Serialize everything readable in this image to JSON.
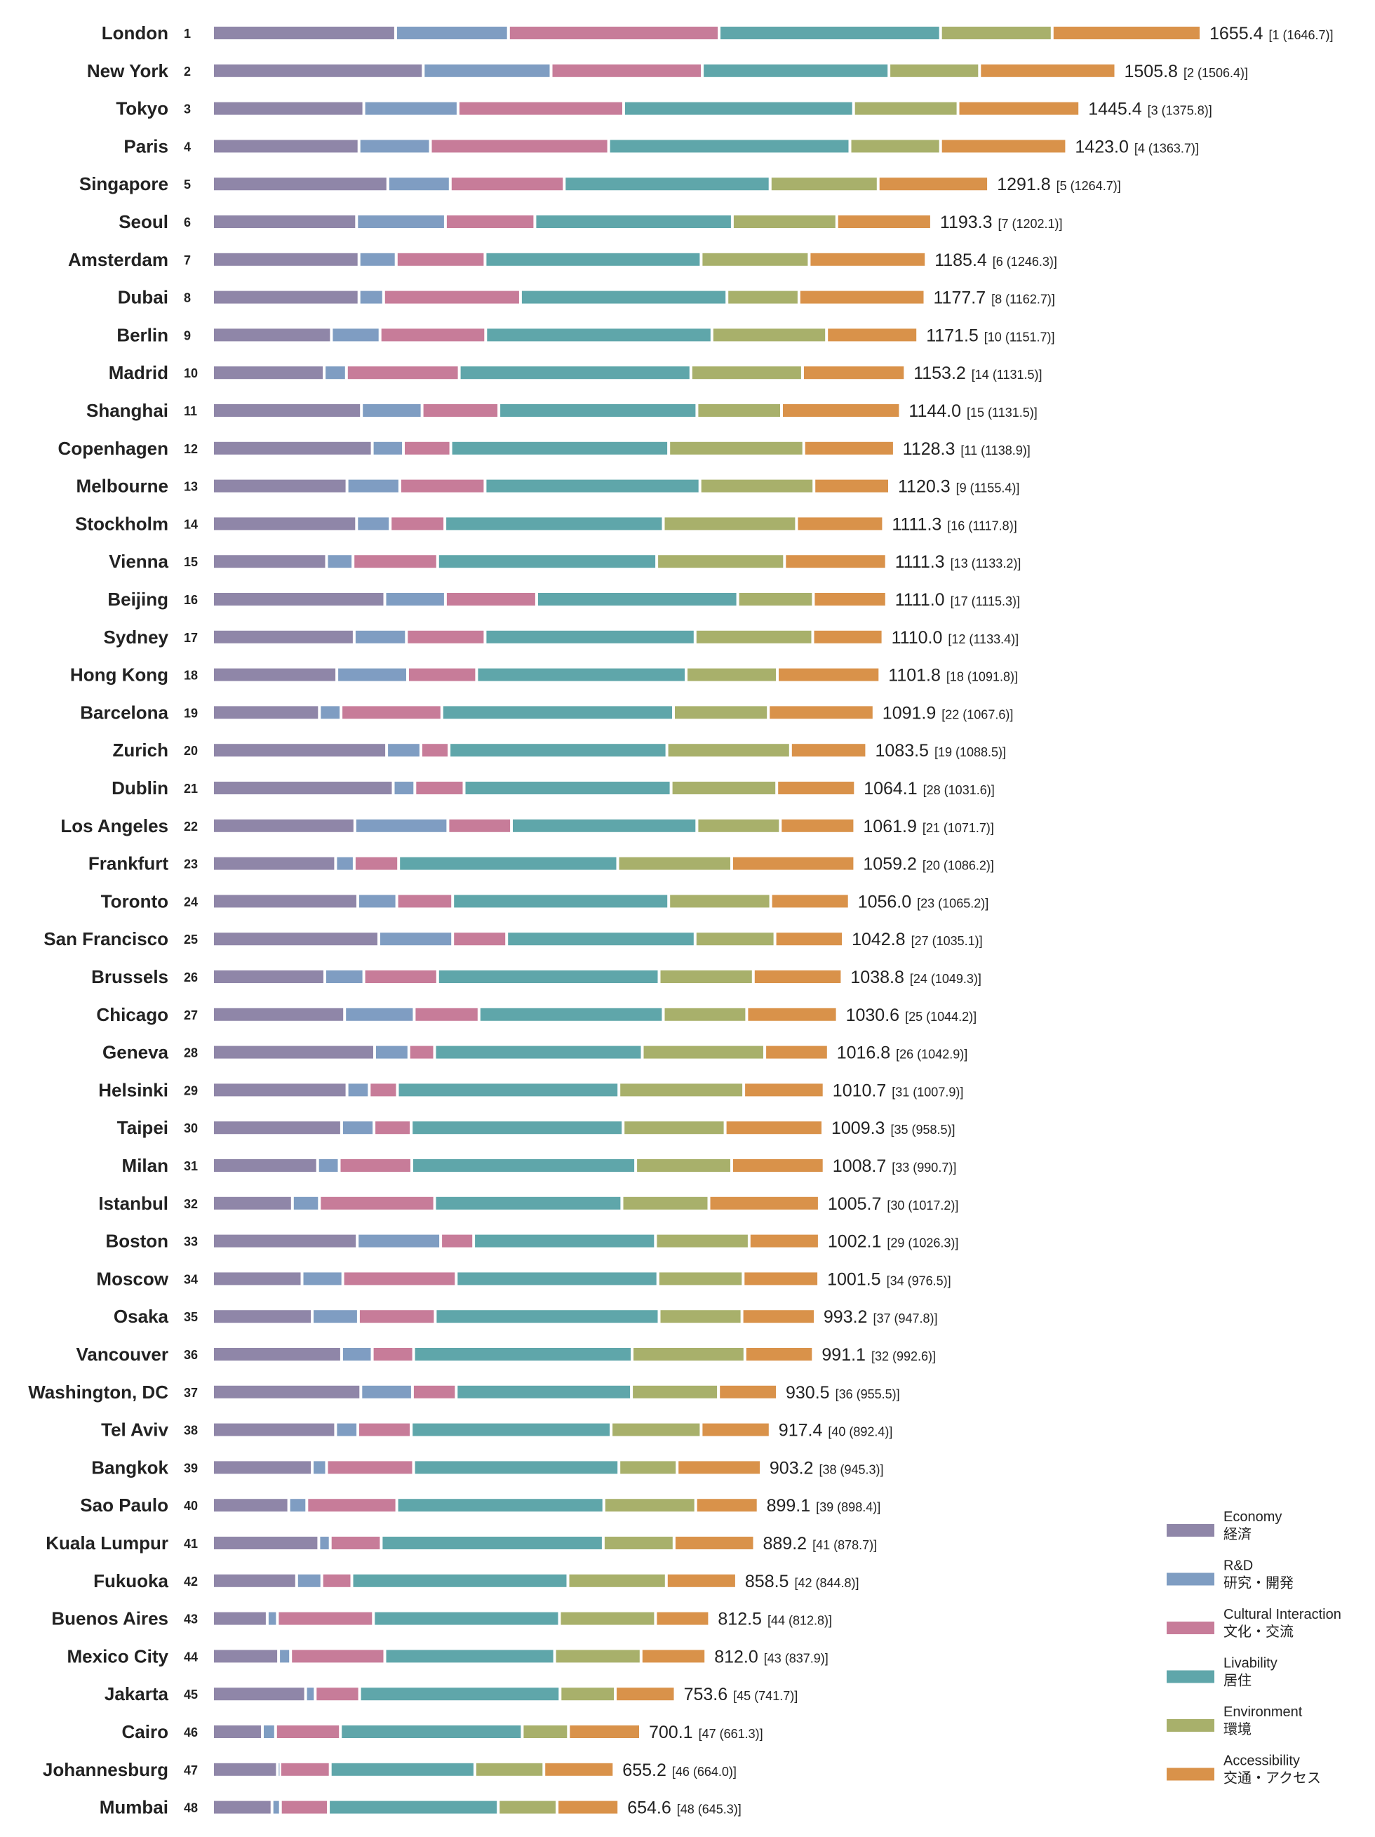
{
  "chart_data": {
    "type": "bar",
    "orientation": "horizontal",
    "stacked": true,
    "legend_position": "bottom-right",
    "grid": false,
    "legend": [
      {
        "name": "Economy",
        "name_jp": "経済",
        "color": "#8f86a8"
      },
      {
        "name": "R&D",
        "name_jp": "研究・開発",
        "color": "#7f9dc2"
      },
      {
        "name": "Cultural Interaction",
        "name_jp": "文化・交流",
        "color": "#c77c99"
      },
      {
        "name": "Livability",
        "name_jp": "居住",
        "color": "#5fa6aa"
      },
      {
        "name": "Environment",
        "name_jp": "環境",
        "color": "#a8b06b"
      },
      {
        "name": "Accessibility",
        "name_jp": "交通・アクセス",
        "color": "#d9924a"
      }
    ],
    "rows": [
      {
        "city": "London",
        "rank": "1",
        "total": "1655.4",
        "prev": "[1 (1646.7)]",
        "values": [
          305,
          188,
          351,
          369,
          186,
          248
        ]
      },
      {
        "city": "New York",
        "rank": "2",
        "total": "1505.8",
        "prev": "[2 (1506.4)]",
        "values": [
          351,
          213,
          252,
          311,
          151,
          227
        ]
      },
      {
        "city": "Tokyo",
        "rank": "3",
        "total": "1445.4",
        "prev": "[3 (1375.8)]",
        "values": [
          252,
          157,
          276,
          383,
          174,
          203
        ]
      },
      {
        "city": "Paris",
        "rank": "4",
        "total": "1423.0",
        "prev": "[4 (1363.7)]",
        "values": [
          244,
          119,
          297,
          402,
          151,
          210
        ]
      },
      {
        "city": "Singapore",
        "rank": "5",
        "total": "1291.8",
        "prev": "[5 (1264.7)]",
        "values": [
          292,
          104,
          190,
          343,
          180,
          184
        ]
      },
      {
        "city": "Seoul",
        "rank": "6",
        "total": "1193.3",
        "prev": "[7 (1202.1)]",
        "values": [
          240,
          148,
          149,
          329,
          174,
          158
        ]
      },
      {
        "city": "Amsterdam",
        "rank": "7",
        "total": "1185.4",
        "prev": "[6 (1246.3)]",
        "values": [
          244,
          62,
          148,
          360,
          180,
          195
        ]
      },
      {
        "city": "Dubai",
        "rank": "8",
        "total": "1177.7",
        "prev": "[8 (1162.7)]",
        "values": [
          244,
          41,
          228,
          344,
          120,
          210
        ]
      },
      {
        "city": "Berlin",
        "rank": "9",
        "total": "1171.5",
        "prev": "[10 (1151.7)]",
        "values": [
          198,
          81,
          176,
          377,
          191,
          152
        ]
      },
      {
        "city": "Madrid",
        "rank": "10",
        "total": "1153.2",
        "prev": "[14 (1131.5)]",
        "values": [
          186,
          37,
          188,
          386,
          186,
          171
        ]
      },
      {
        "city": "Shanghai",
        "rank": "11",
        "total": "1144.0",
        "prev": "[15 (1131.5)]",
        "values": [
          248,
          101,
          128,
          330,
          141,
          198
        ]
      },
      {
        "city": "Copenhagen",
        "rank": "12",
        "total": "1128.3",
        "prev": "[11 (1138.9)]",
        "values": [
          266,
          52,
          79,
          363,
          225,
          151
        ]
      },
      {
        "city": "Melbourne",
        "rank": "13",
        "total": "1120.3",
        "prev": "[9 (1155.4)]",
        "values": [
          224,
          88,
          142,
          358,
          190,
          126
        ]
      },
      {
        "city": "Stockholm",
        "rank": "14",
        "total": "1111.3",
        "prev": "[16 (1117.8)]",
        "values": [
          240,
          56,
          91,
          364,
          222,
          145
        ]
      },
      {
        "city": "Vienna",
        "rank": "15",
        "total": "1111.3",
        "prev": "[13 (1133.2)]",
        "values": [
          190,
          44,
          141,
          365,
          213,
          170
        ]
      },
      {
        "city": "Beijing",
        "rank": "16",
        "total": "1111.0",
        "prev": "[17 (1115.3)]",
        "values": [
          287,
          101,
          152,
          335,
          126,
          122
        ]
      },
      {
        "city": "Sydney",
        "rank": "17",
        "total": "1110.0",
        "prev": "[12 (1133.4)]",
        "values": [
          236,
          87,
          131,
          350,
          196,
          117
        ]
      },
      {
        "city": "Hong Kong",
        "rank": "18",
        "total": "1101.8",
        "prev": "[18 (1091.8)]",
        "values": [
          207,
          118,
          115,
          349,
          152,
          171
        ]
      },
      {
        "city": "Barcelona",
        "rank": "19",
        "total": "1091.9",
        "prev": "[22 (1067.6)]",
        "values": [
          178,
          36,
          168,
          386,
          158,
          176
        ]
      },
      {
        "city": "Zurich",
        "rank": "20",
        "total": "1083.5",
        "prev": "[19 (1088.5)]",
        "values": [
          290,
          57,
          47,
          363,
          206,
          127
        ]
      },
      {
        "city": "Dublin",
        "rank": "21",
        "total": "1064.1",
        "prev": "[28 (1031.6)]",
        "values": [
          301,
          36,
          82,
          345,
          176,
          131
        ]
      },
      {
        "city": "Los Angeles",
        "rank": "22",
        "total": "1061.9",
        "prev": "[21 (1071.7)]",
        "values": [
          237,
          155,
          106,
          309,
          139,
          124
        ]
      },
      {
        "city": "Frankfurt",
        "rank": "23",
        "total": "1059.2",
        "prev": "[20 (1086.2)]",
        "values": [
          205,
          31,
          74,
          365,
          190,
          205
        ]
      },
      {
        "city": "Toronto",
        "rank": "24",
        "total": "1056.0",
        "prev": "[23 (1065.2)]",
        "values": [
          242,
          65,
          93,
          360,
          170,
          131
        ]
      },
      {
        "city": "San Francisco",
        "rank": "25",
        "total": "1042.8",
        "prev": "[27 (1035.1)]",
        "values": [
          277,
          123,
          90,
          314,
          133,
          114
        ]
      },
      {
        "city": "Brussels",
        "rank": "26",
        "total": "1038.8",
        "prev": "[24 (1049.3)]",
        "values": [
          187,
          65,
          123,
          369,
          157,
          148
        ]
      },
      {
        "city": "Chicago",
        "rank": "27",
        "total": "1030.6",
        "prev": "[25 (1044.2)]",
        "values": [
          220,
          116,
          108,
          307,
          139,
          151
        ]
      },
      {
        "city": "Geneva",
        "rank": "28",
        "total": "1016.8",
        "prev": "[26 (1042.9)]",
        "values": [
          270,
          57,
          43,
          346,
          204,
          106
        ]
      },
      {
        "city": "Helsinki",
        "rank": "29",
        "total": "1010.7",
        "prev": "[31 (1007.9)]",
        "values": [
          224,
          37,
          47,
          369,
          208,
          134
        ]
      },
      {
        "city": "Taipei",
        "rank": "30",
        "total": "1009.3",
        "prev": "[35 (958.5)]",
        "values": [
          215,
          54,
          62,
          353,
          170,
          163
        ]
      },
      {
        "city": "Milan",
        "rank": "31",
        "total": "1008.7",
        "prev": "[33 (990.7)]",
        "values": [
          175,
          36,
          121,
          373,
          160,
          154
        ]
      },
      {
        "city": "Istanbul",
        "rank": "32",
        "total": "1005.7",
        "prev": "[30 (1017.2)]",
        "values": [
          133,
          45,
          192,
          312,
          145,
          184
        ]
      },
      {
        "city": "Boston",
        "rank": "33",
        "total": "1002.1",
        "prev": "[29 (1026.3)]",
        "values": [
          241,
          139,
          55,
          303,
          156,
          117
        ]
      },
      {
        "city": "Moscow",
        "rank": "34",
        "total": "1001.5",
        "prev": "[34 (976.5)]",
        "values": [
          149,
          68,
          189,
          336,
          142,
          126
        ]
      },
      {
        "city": "Osaka",
        "rank": "35",
        "total": "993.2",
        "prev": "[37 (947.8)]",
        "values": [
          166,
          77,
          128,
          373,
          138,
          122
        ]
      },
      {
        "city": "Vancouver",
        "rank": "36",
        "total": "991.1",
        "prev": "[32 (992.6)]",
        "values": [
          215,
          51,
          69,
          364,
          188,
          114
        ]
      },
      {
        "city": "Washington, DC",
        "rank": "37",
        "total": "930.5",
        "prev": "[36 (955.5)]",
        "values": [
          247,
          86,
          73,
          292,
          145,
          98
        ]
      },
      {
        "city": "Tel Aviv",
        "rank": "38",
        "total": "917.4",
        "prev": "[40 (892.4)]",
        "values": [
          205,
          37,
          89,
          333,
          150,
          115
        ]
      },
      {
        "city": "Bangkok",
        "rank": "39",
        "total": "903.2",
        "prev": "[38 (945.3)]",
        "values": [
          166,
          24,
          145,
          342,
          97,
          140
        ]
      },
      {
        "city": "Sao Paulo",
        "rank": "40",
        "total": "899.1",
        "prev": "[39 (898.4)]",
        "values": [
          127,
          30,
          150,
          345,
          153,
          104
        ]
      },
      {
        "city": "Kuala Lumpur",
        "rank": "41",
        "total": "889.2",
        "prev": "[41 (878.7)]",
        "values": [
          177,
          19,
          85,
          370,
          118,
          134
        ]
      },
      {
        "city": "Fukuoka",
        "rank": "42",
        "total": "858.5",
        "prev": "[42 (844.8)]",
        "values": [
          140,
          42,
          50,
          360,
          164,
          117
        ]
      },
      {
        "city": "Buenos Aires",
        "rank": "43",
        "total": "812.5",
        "prev": "[44 (812.8)]",
        "values": [
          91,
          17,
          160,
          310,
          160,
          90
        ]
      },
      {
        "city": "Mexico City",
        "rank": "44",
        "total": "812.0",
        "prev": "[43 (837.9)]",
        "values": [
          110,
          20,
          157,
          283,
          144,
          108
        ]
      },
      {
        "city": "Jakarta",
        "rank": "45",
        "total": "753.6",
        "prev": "[45 (741.7)]",
        "values": [
          155,
          16,
          74,
          334,
          92,
          100
        ]
      },
      {
        "city": "Cairo",
        "rank": "46",
        "total": "700.1",
        "prev": "[47 (661.3)]",
        "values": [
          83,
          22,
          108,
          303,
          77,
          120
        ]
      },
      {
        "city": "Johannesburg",
        "rank": "47",
        "total": "655.2",
        "prev": "[46 (664.0)]",
        "values": [
          108,
          4,
          84,
          241,
          115,
          117
        ]
      },
      {
        "city": "Mumbai",
        "rank": "48",
        "total": "654.6",
        "prev": "[48 (645.3)]",
        "values": [
          99,
          14,
          80,
          283,
          98,
          103
        ]
      }
    ]
  }
}
